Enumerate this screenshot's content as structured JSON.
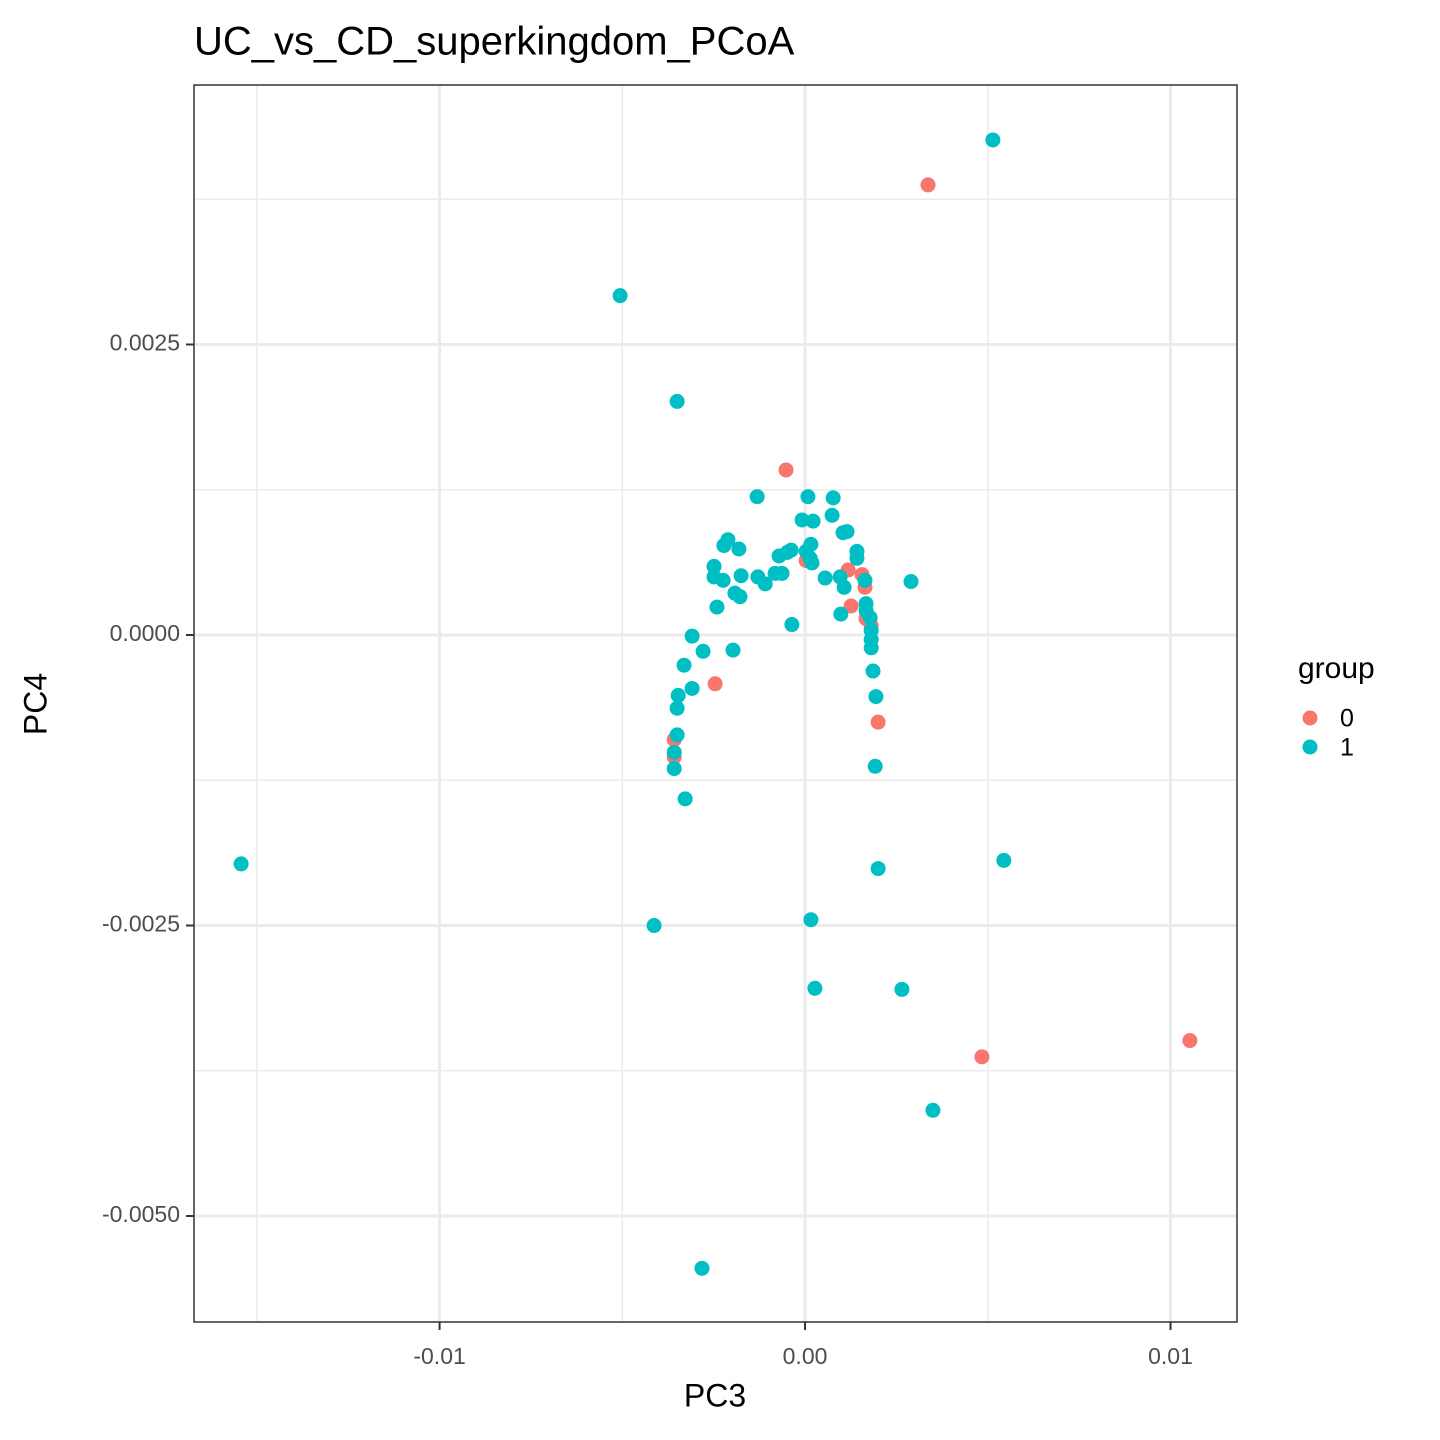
{
  "chart_data": {
    "type": "scatter",
    "title": "UC_vs_CD_superkingdom_PCoA",
    "x_label": "PC3",
    "y_label": "PC4",
    "legend_title": "group",
    "legend_position": "right",
    "grid": true,
    "xlim": [
      -0.01672,
      0.01182
    ],
    "ylim": [
      -0.005912,
      0.004733
    ],
    "xticks": [
      {
        "value": -0.01,
        "label": "-0.01"
      },
      {
        "value": 0,
        "label": "0.00"
      },
      {
        "value": 0.01,
        "label": "0.01"
      }
    ],
    "yticks": [
      0.0025,
      {
        "value": 0,
        "label": "0.0000"
      },
      -0.0025,
      {
        "value": -0.005,
        "label": "-0.0050"
      }
    ],
    "x_minor_grid": [
      -0.015,
      -0.005,
      0.005
    ],
    "y_minor_grid": [
      0.00375,
      0.00125,
      -0.00125,
      -0.00375
    ],
    "series": [
      {
        "name": "0",
        "color": "#F8766D",
        "x": [
          0.003365,
          -0.00052,
          3e-05,
          0.00118,
          0.00156,
          0.00164,
          0.00126,
          0.00167,
          0.00181,
          -0.00246,
          -0.00358,
          -0.00358,
          0.002,
          0.00484,
          0.01053
        ],
        "values": [
          0.003873,
          0.00142,
          0.00064,
          0.00056,
          0.00052,
          0.00041,
          0.00025,
          0.00014,
          8e-05,
          -0.00042,
          -0.0009,
          -0.00105,
          -0.00075,
          -0.00363,
          -0.00349
        ]
      },
      {
        "name": "1",
        "color": "#00BFC4",
        "x": [
          0.00514,
          -0.00506,
          -0.0035,
          -0.00131,
          8e-05,
          0.00077,
          -8e-05,
          0.00022,
          0.00074,
          0.00104,
          0.00115,
          0.00016,
          -0.00211,
          -0.00222,
          -0.00181,
          -0.00249,
          -0.00249,
          -0.00224,
          -0.00175,
          -0.00192,
          -0.00178,
          -0.00241,
          -0.00129,
          -0.00109,
          -0.00082,
          -0.00063,
          -0.00071,
          -0.00049,
          -0.00038,
          3e-05,
          0.00014,
          0.00019,
          0.00055,
          0.00142,
          0.00142,
          0.00096,
          0.00107,
          0.00164,
          0.0029,
          0.00167,
          0.00167,
          0.00098,
          -0.00036,
          0.00178,
          0.00181,
          0.00181,
          0.00181,
          0.00186,
          0.00194,
          0.00192,
          0.002,
          -0.00309,
          -0.00279,
          -0.00197,
          -0.00331,
          -0.00309,
          -0.00347,
          -0.0035,
          -0.0035,
          -0.00358,
          -0.00358,
          -0.00328,
          -0.01543,
          0.00544,
          -0.00413,
          0.00016,
          0.00027,
          0.00265,
          0.0035,
          -0.00282
        ],
        "values": [
          0.00426,
          0.00292,
          0.00201,
          0.00119,
          0.00119,
          0.00118,
          0.00099,
          0.00098,
          0.00103,
          0.00088,
          0.00089,
          0.00078,
          0.00082,
          0.00077,
          0.00074,
          0.00059,
          0.0005,
          0.00047,
          0.00051,
          0.00036,
          0.00033,
          0.00024,
          0.0005,
          0.00044,
          0.00053,
          0.00053,
          0.00068,
          0.00071,
          0.00073,
          0.00072,
          0.00066,
          0.00062,
          0.00049,
          0.00072,
          0.00066,
          0.0005,
          0.00041,
          0.00047,
          0.00046,
          0.00027,
          0.00021,
          0.00018,
          9e-05,
          0.00015,
          4e-05,
          -4e-05,
          -0.00011,
          -0.00031,
          -0.00053,
          -0.00113,
          -0.00201,
          -1e-05,
          -0.00014,
          -0.00013,
          -0.00026,
          -0.00046,
          -0.00052,
          -0.00063,
          -0.00086,
          -0.00101,
          -0.00115,
          -0.00141,
          -0.00197,
          -0.00194,
          -0.0025,
          -0.00245,
          -0.00304,
          -0.00305,
          -0.00409,
          -0.00545
        ]
      }
    ]
  }
}
